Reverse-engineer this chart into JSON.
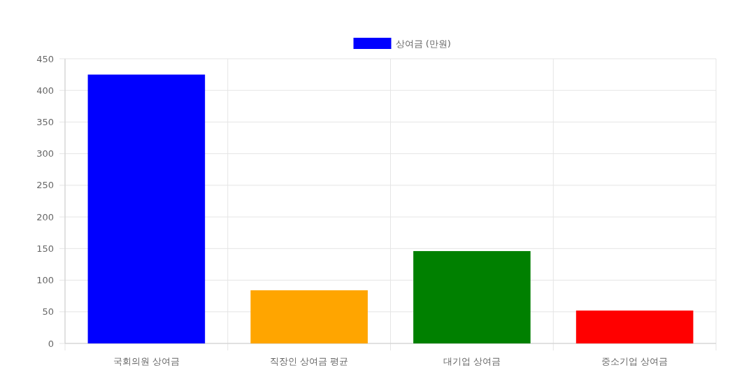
{
  "chart_data": {
    "type": "bar",
    "categories": [
      "국회의원 상여금",
      "직장인 상여금 평균",
      "대기업 상여금",
      "중소기업 상여금"
    ],
    "series": [
      {
        "name": "상여금 (만원)",
        "color": "#0000ff",
        "colors": [
          "#0000ff",
          "#ffa500",
          "#008000",
          "#ff0000"
        ],
        "values": [
          425,
          84,
          146,
          52
        ]
      }
    ],
    "ylim": [
      0,
      450
    ],
    "yticks": [
      0,
      50,
      100,
      150,
      200,
      250,
      300,
      350,
      400,
      450
    ],
    "grid": true,
    "legend": "top"
  }
}
